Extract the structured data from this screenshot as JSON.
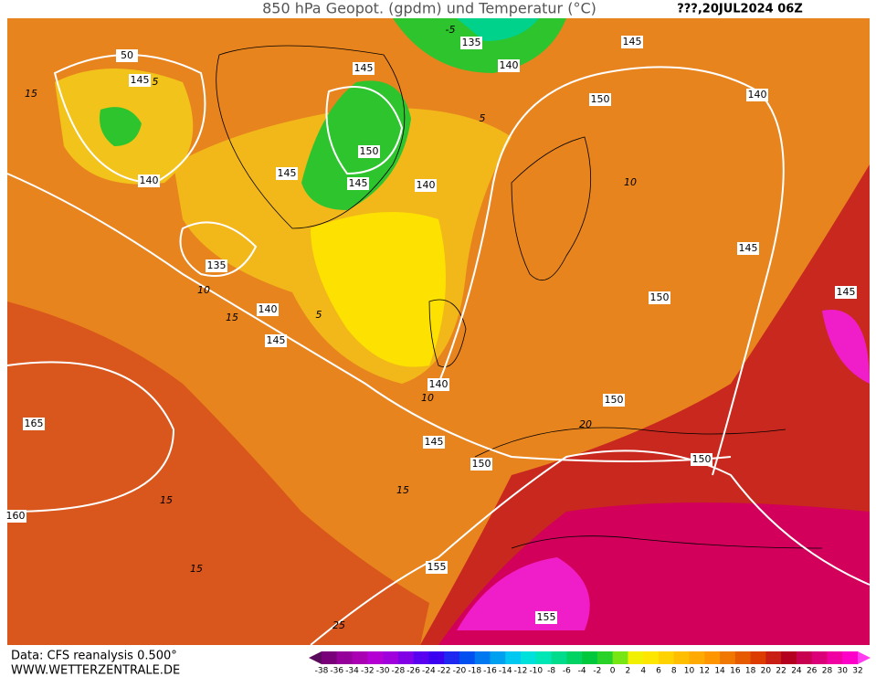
{
  "header": {
    "title": "850 hPa Geopot. (gpdm) und Temperatur (°C)",
    "date": "???,20JUL2024 06Z"
  },
  "contour_labels": [
    "50",
    "145",
    "140",
    "135",
    "140",
    "145",
    "145",
    "145",
    "145",
    "150",
    "140",
    "135",
    "140",
    "145",
    "150",
    "140",
    "145",
    "150",
    "145",
    "140",
    "145",
    "150",
    "150",
    "150",
    "165",
    "160",
    "155",
    "155"
  ],
  "temperature_labels": [
    "15",
    "5",
    "10",
    "15",
    "5",
    "10",
    "15",
    "15",
    "15",
    "10",
    "20",
    "-5",
    "5",
    "25"
  ],
  "footer": {
    "source": "Data: CFS reanalysis 0.500°",
    "website": "WWW.WETTERZENTRALE.DE"
  },
  "legend": {
    "labels": [
      "-38",
      "-36",
      "-34",
      "-32",
      "-30",
      "-28",
      "-26",
      "-24",
      "-22",
      "-20",
      "-18",
      "-16",
      "-14",
      "-12",
      "-10",
      "-8",
      "-6",
      "-4",
      "-2",
      "0",
      "2",
      "4",
      "6",
      "8",
      "10",
      "12",
      "14",
      "16",
      "18",
      "20",
      "22",
      "24",
      "26",
      "28",
      "30",
      "32"
    ],
    "colors": [
      "#5a0a5a",
      "#7a007a",
      "#96009a",
      "#aa00b4",
      "#b400d2",
      "#a000dc",
      "#8200e6",
      "#5a00f0",
      "#3c00f0",
      "#1e28f0",
      "#0050f0",
      "#0078f0",
      "#00a0f0",
      "#00c8f0",
      "#00e1dc",
      "#00e6b4",
      "#00dc8c",
      "#00d264",
      "#00c83c",
      "#28d228",
      "#78e614",
      "#f0f000",
      "#ffe600",
      "#ffd200",
      "#ffbe00",
      "#ffaa00",
      "#ff9600",
      "#f07800",
      "#e65a00",
      "#dc3c00",
      "#c81e14",
      "#b4001e",
      "#c80050",
      "#dc0078",
      "#f000a0",
      "#ff00c8",
      "#ff3cf0"
    ]
  }
}
